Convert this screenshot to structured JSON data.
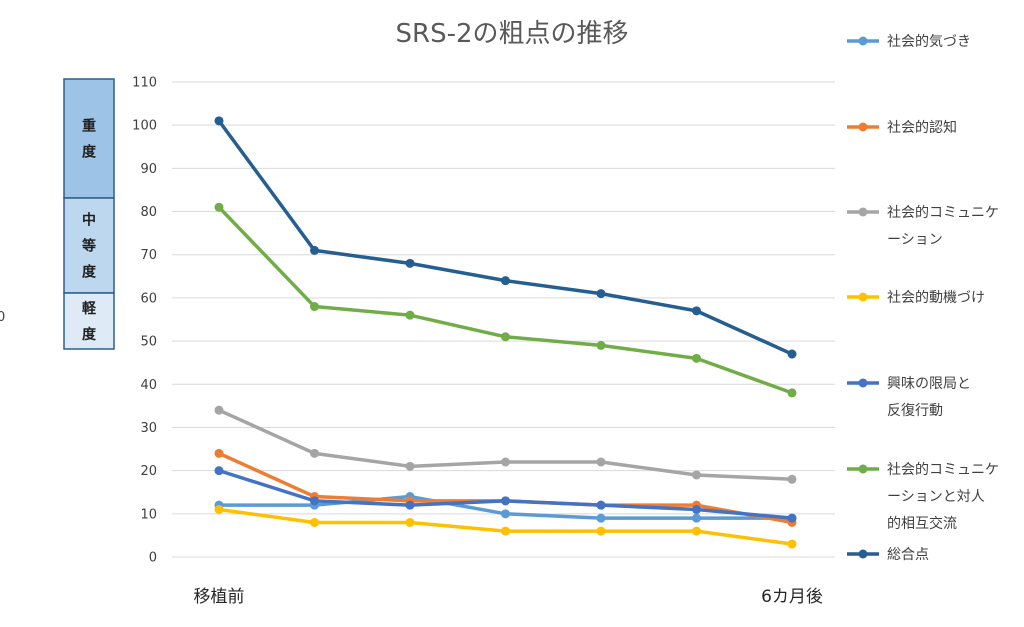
{
  "chart_data": {
    "type": "line",
    "title": "SRS-2の粗点の推移",
    "x": [
      "移植前",
      "",
      "",
      "",
      "",
      "",
      "6カ月後"
    ],
    "ylim": [
      0,
      110
    ],
    "y_ticks": [
      0,
      10,
      20,
      30,
      40,
      50,
      60,
      70,
      80,
      90,
      100,
      110
    ],
    "grid": true,
    "legend_position": "right",
    "series": [
      {
        "name": "社会的気づき",
        "color": "#5B9BD5",
        "values": [
          12,
          12,
          14,
          10,
          9,
          9,
          9
        ]
      },
      {
        "name": "社会的認知",
        "color": "#ED7D31",
        "values": [
          24,
          14,
          13,
          13,
          12,
          12,
          8
        ]
      },
      {
        "name": "社会的コミュニケーション",
        "color": "#A5A5A5",
        "values": [
          34,
          24,
          21,
          22,
          22,
          19,
          18
        ]
      },
      {
        "name": "社会的動機づけ",
        "color": "#FFC000",
        "values": [
          11,
          8,
          8,
          6,
          6,
          6,
          3
        ]
      },
      {
        "name": "興味の限局と反復行動",
        "color": "#4472C4",
        "values": [
          20,
          13,
          12,
          13,
          12,
          11,
          9
        ]
      },
      {
        "name": "社会的コミュニケーションと対人的相互交流",
        "color": "#70AD47",
        "values": [
          81,
          58,
          56,
          51,
          49,
          46,
          38
        ]
      },
      {
        "name": "総合点",
        "color": "#255E91",
        "values": [
          101,
          71,
          68,
          64,
          61,
          57,
          47
        ]
      }
    ],
    "severity_bands": [
      {
        "label": "重度",
        "color": "#9DC3E6"
      },
      {
        "label": "中等度",
        "color": "#BDD7EE"
      },
      {
        "label": "軽度",
        "color": "#DEEBF7"
      }
    ]
  },
  "edge_fragment": "0"
}
